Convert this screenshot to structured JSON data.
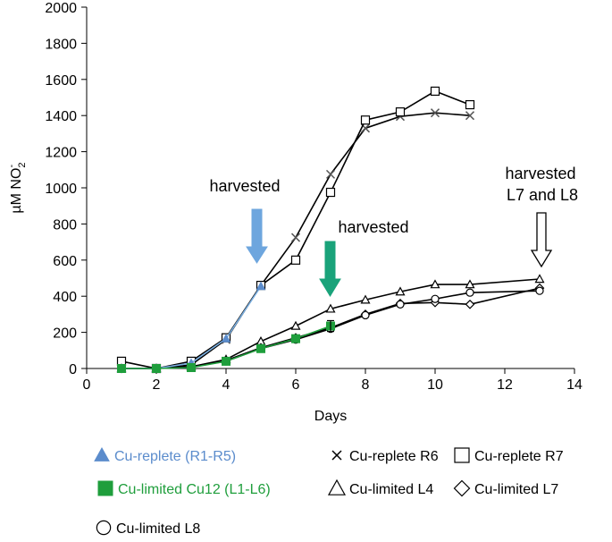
{
  "chart_data": {
    "type": "line",
    "xlabel": "Days",
    "ylabel": "µM NO",
    "ylabel_sub": "2",
    "ylabel_sup": "-",
    "xlim": [
      0,
      14
    ],
    "ylim": [
      0,
      2000
    ],
    "xticks": [
      0,
      2,
      4,
      6,
      8,
      10,
      12,
      14
    ],
    "yticks": [
      0,
      200,
      400,
      600,
      800,
      1000,
      1200,
      1400,
      1600,
      1800,
      2000
    ],
    "series": [
      {
        "key": "r6",
        "name": "Cu-replete R6",
        "marker": "x",
        "color": "#555555",
        "line": "#000000",
        "x": [
          1,
          2,
          3,
          4,
          5,
          6,
          7,
          8,
          9,
          10,
          11
        ],
        "y": [
          0,
          0,
          20,
          160,
          460,
          725,
          1075,
          1330,
          1395,
          1415,
          1400
        ]
      },
      {
        "key": "r7",
        "name": "Cu-replete R7",
        "marker": "square",
        "color": "#000000",
        "line": "#000000",
        "x": [
          1,
          2,
          3,
          4,
          5,
          6,
          7,
          8,
          9,
          10,
          11
        ],
        "y": [
          40,
          0,
          40,
          170,
          460,
          600,
          975,
          1375,
          1420,
          1535,
          1460
        ]
      },
      {
        "key": "l4",
        "name": "Cu-limited L4",
        "marker": "triangle-open",
        "color": "#000000",
        "line": "#000000",
        "x": [
          1,
          2,
          3,
          4,
          5,
          6,
          7,
          8,
          9,
          10,
          11,
          13
        ],
        "y": [
          0,
          0,
          10,
          50,
          150,
          235,
          330,
          380,
          425,
          465,
          465,
          495
        ]
      },
      {
        "key": "l7",
        "name": "Cu-limited L7",
        "marker": "diamond",
        "color": "#000000",
        "line": "#000000",
        "x": [
          1,
          2,
          3,
          4,
          5,
          6,
          7,
          8,
          9,
          10,
          11,
          13
        ],
        "y": [
          0,
          0,
          10,
          45,
          115,
          170,
          225,
          300,
          360,
          365,
          355,
          445
        ]
      },
      {
        "key": "l8",
        "name": "Cu-limited L8",
        "marker": "circle",
        "color": "#000000",
        "line": "#000000",
        "x": [
          1,
          2,
          3,
          4,
          5,
          6,
          7,
          8,
          9,
          10,
          11,
          13
        ],
        "y": [
          0,
          0,
          10,
          40,
          110,
          160,
          220,
          295,
          355,
          385,
          420,
          430
        ]
      },
      {
        "key": "replete",
        "name": "Cu-replete (R1-R5)",
        "marker": "triangle-filled",
        "color": "#5b8ccc",
        "line": "#7aaee0",
        "x": [
          1,
          2,
          3,
          4,
          5
        ],
        "y": [
          0,
          0,
          30,
          165,
          455
        ]
      },
      {
        "key": "limited",
        "name": "Cu-limited Cu12 (L1-L6)",
        "marker": "square-filled",
        "color": "#1f9e3c",
        "line": "#1f9e3c",
        "x": [
          1,
          2,
          3,
          4,
          5,
          6,
          7
        ],
        "y": [
          0,
          0,
          5,
          40,
          110,
          165,
          235
        ]
      }
    ],
    "annotations": [
      {
        "text": "harvested",
        "arrow_day": 5,
        "arrow_color": "#6ea6de"
      },
      {
        "text": "harvested",
        "arrow_day": 7,
        "arrow_color": "#1aa37a"
      },
      {
        "text": "harvested\nL7 and L8",
        "arrow_day": 13,
        "arrow_color": "open"
      }
    ]
  },
  "legend": [
    {
      "marker": "triangle-filled",
      "label": "Cu-replete (R1-R5)",
      "color": "#5b8ccc"
    },
    {
      "marker": "x",
      "label": "Cu-replete R6",
      "color": "#000000"
    },
    {
      "marker": "square",
      "label": "Cu-replete R7",
      "color": "#000000"
    },
    {
      "marker": "square-filled",
      "label": "Cu-limited Cu12 (L1-L6)",
      "color": "#1f9e3c"
    },
    {
      "marker": "triangle-open",
      "label": "Cu-limited L4",
      "color": "#000000"
    },
    {
      "marker": "diamond",
      "label": "Cu-limited L7",
      "color": "#000000"
    },
    {
      "marker": "circle",
      "label": "Cu-limited L8",
      "color": "#000000"
    }
  ]
}
